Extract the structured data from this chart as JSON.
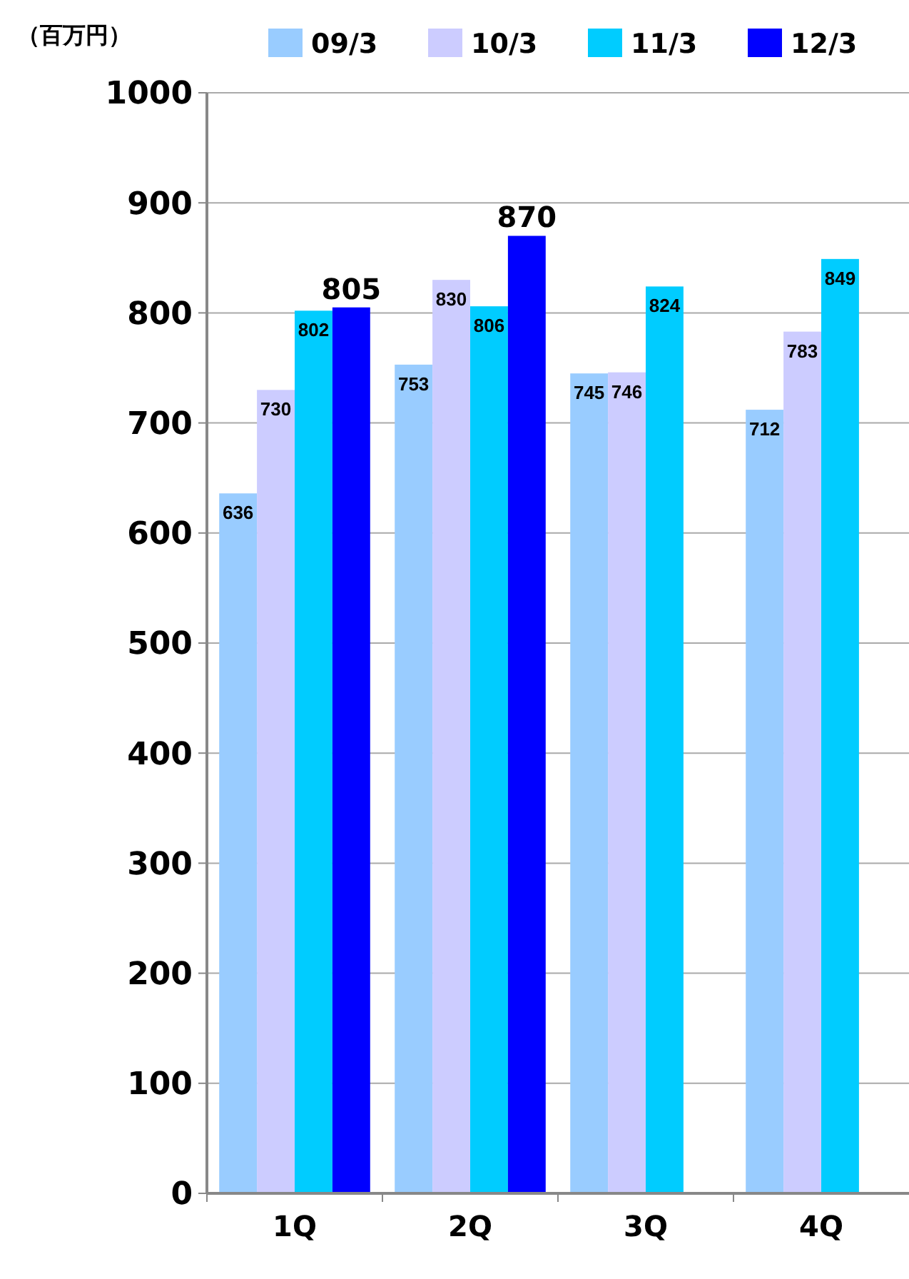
{
  "chart_data": {
    "type": "bar",
    "ylabel": "（百万円）",
    "categories": [
      "1Q",
      "2Q",
      "3Q",
      "4Q"
    ],
    "series": [
      {
        "name": "09/3",
        "color": "#99ccff",
        "values": [
          636,
          753,
          745,
          712
        ]
      },
      {
        "name": "10/3",
        "color": "#ccccff",
        "values": [
          730,
          830,
          746,
          783
        ]
      },
      {
        "name": "11/3",
        "color": "#00ccff",
        "values": [
          802,
          806,
          824,
          849
        ]
      },
      {
        "name": "12/3",
        "color": "#0000ff",
        "values": [
          805,
          870,
          null,
          null
        ]
      }
    ],
    "ylim": [
      0,
      1000
    ],
    "yticks": [
      0,
      100,
      200,
      300,
      400,
      500,
      600,
      700,
      800,
      900,
      1000
    ],
    "grid": "y",
    "legend": "top right",
    "data_labels": true
  }
}
